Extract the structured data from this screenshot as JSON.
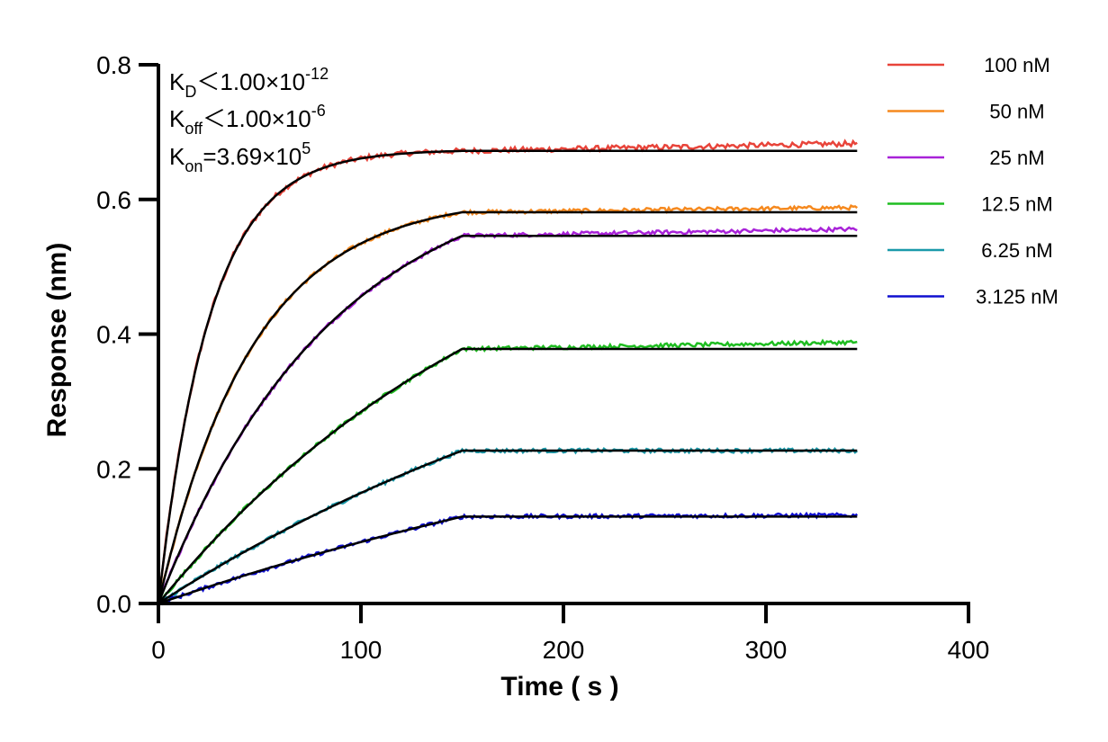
{
  "chart_data": {
    "type": "line",
    "title": "",
    "xlabel": "Time ( s )",
    "ylabel": "Response (nm)",
    "xlim": [
      0,
      400
    ],
    "ylim": [
      0,
      0.8
    ],
    "x_ticks": [
      "0",
      "100",
      "200",
      "300",
      "400"
    ],
    "y_ticks": [
      "0.0",
      "0.2",
      "0.4",
      "0.6",
      "0.8"
    ],
    "grid": false,
    "legend_position": "right",
    "association_end": 150,
    "end_time": 345,
    "kinetics": {
      "kd": {
        "main": "K",
        "sub": "D",
        "rel": "＜",
        "value": "1.00×10",
        "exp": "-12"
      },
      "koff": {
        "main": "K",
        "sub": "off",
        "rel": "＜",
        "value": "1.00×10",
        "exp": "-6"
      },
      "kon": {
        "main": "K",
        "sub": "on",
        "rel": "=",
        "value": "3.69×10",
        "exp": "5"
      }
    },
    "fit_color": "#000000",
    "series": [
      {
        "name": "100 nM",
        "color": "#e8443a",
        "plateau": 0.672,
        "k_obs": 0.0395,
        "noise": 0.004,
        "end_value": 0.683
      },
      {
        "name": "50 nM",
        "color": "#f5891f",
        "plateau": 0.581,
        "k_obs": 0.0215,
        "noise": 0.003,
        "end_value": 0.588
      },
      {
        "name": "25 nM",
        "color": "#a822d8",
        "plateau": 0.546,
        "k_obs": 0.0118,
        "noise": 0.003,
        "end_value": 0.556
      },
      {
        "name": "12.5 nM",
        "color": "#1fbd21",
        "plateau": 0.378,
        "k_obs": 0.0055,
        "noise": 0.003,
        "end_value": 0.388
      },
      {
        "name": "6.25 nM",
        "color": "#1b9aaa",
        "plateau": 0.227,
        "k_obs": 0.0035,
        "noise": 0.003,
        "end_value": 0.227
      },
      {
        "name": "3.125 nM",
        "color": "#1010d0",
        "plateau": 0.129,
        "k_obs": 0.0025,
        "noise": 0.003,
        "end_value": 0.131
      }
    ]
  }
}
